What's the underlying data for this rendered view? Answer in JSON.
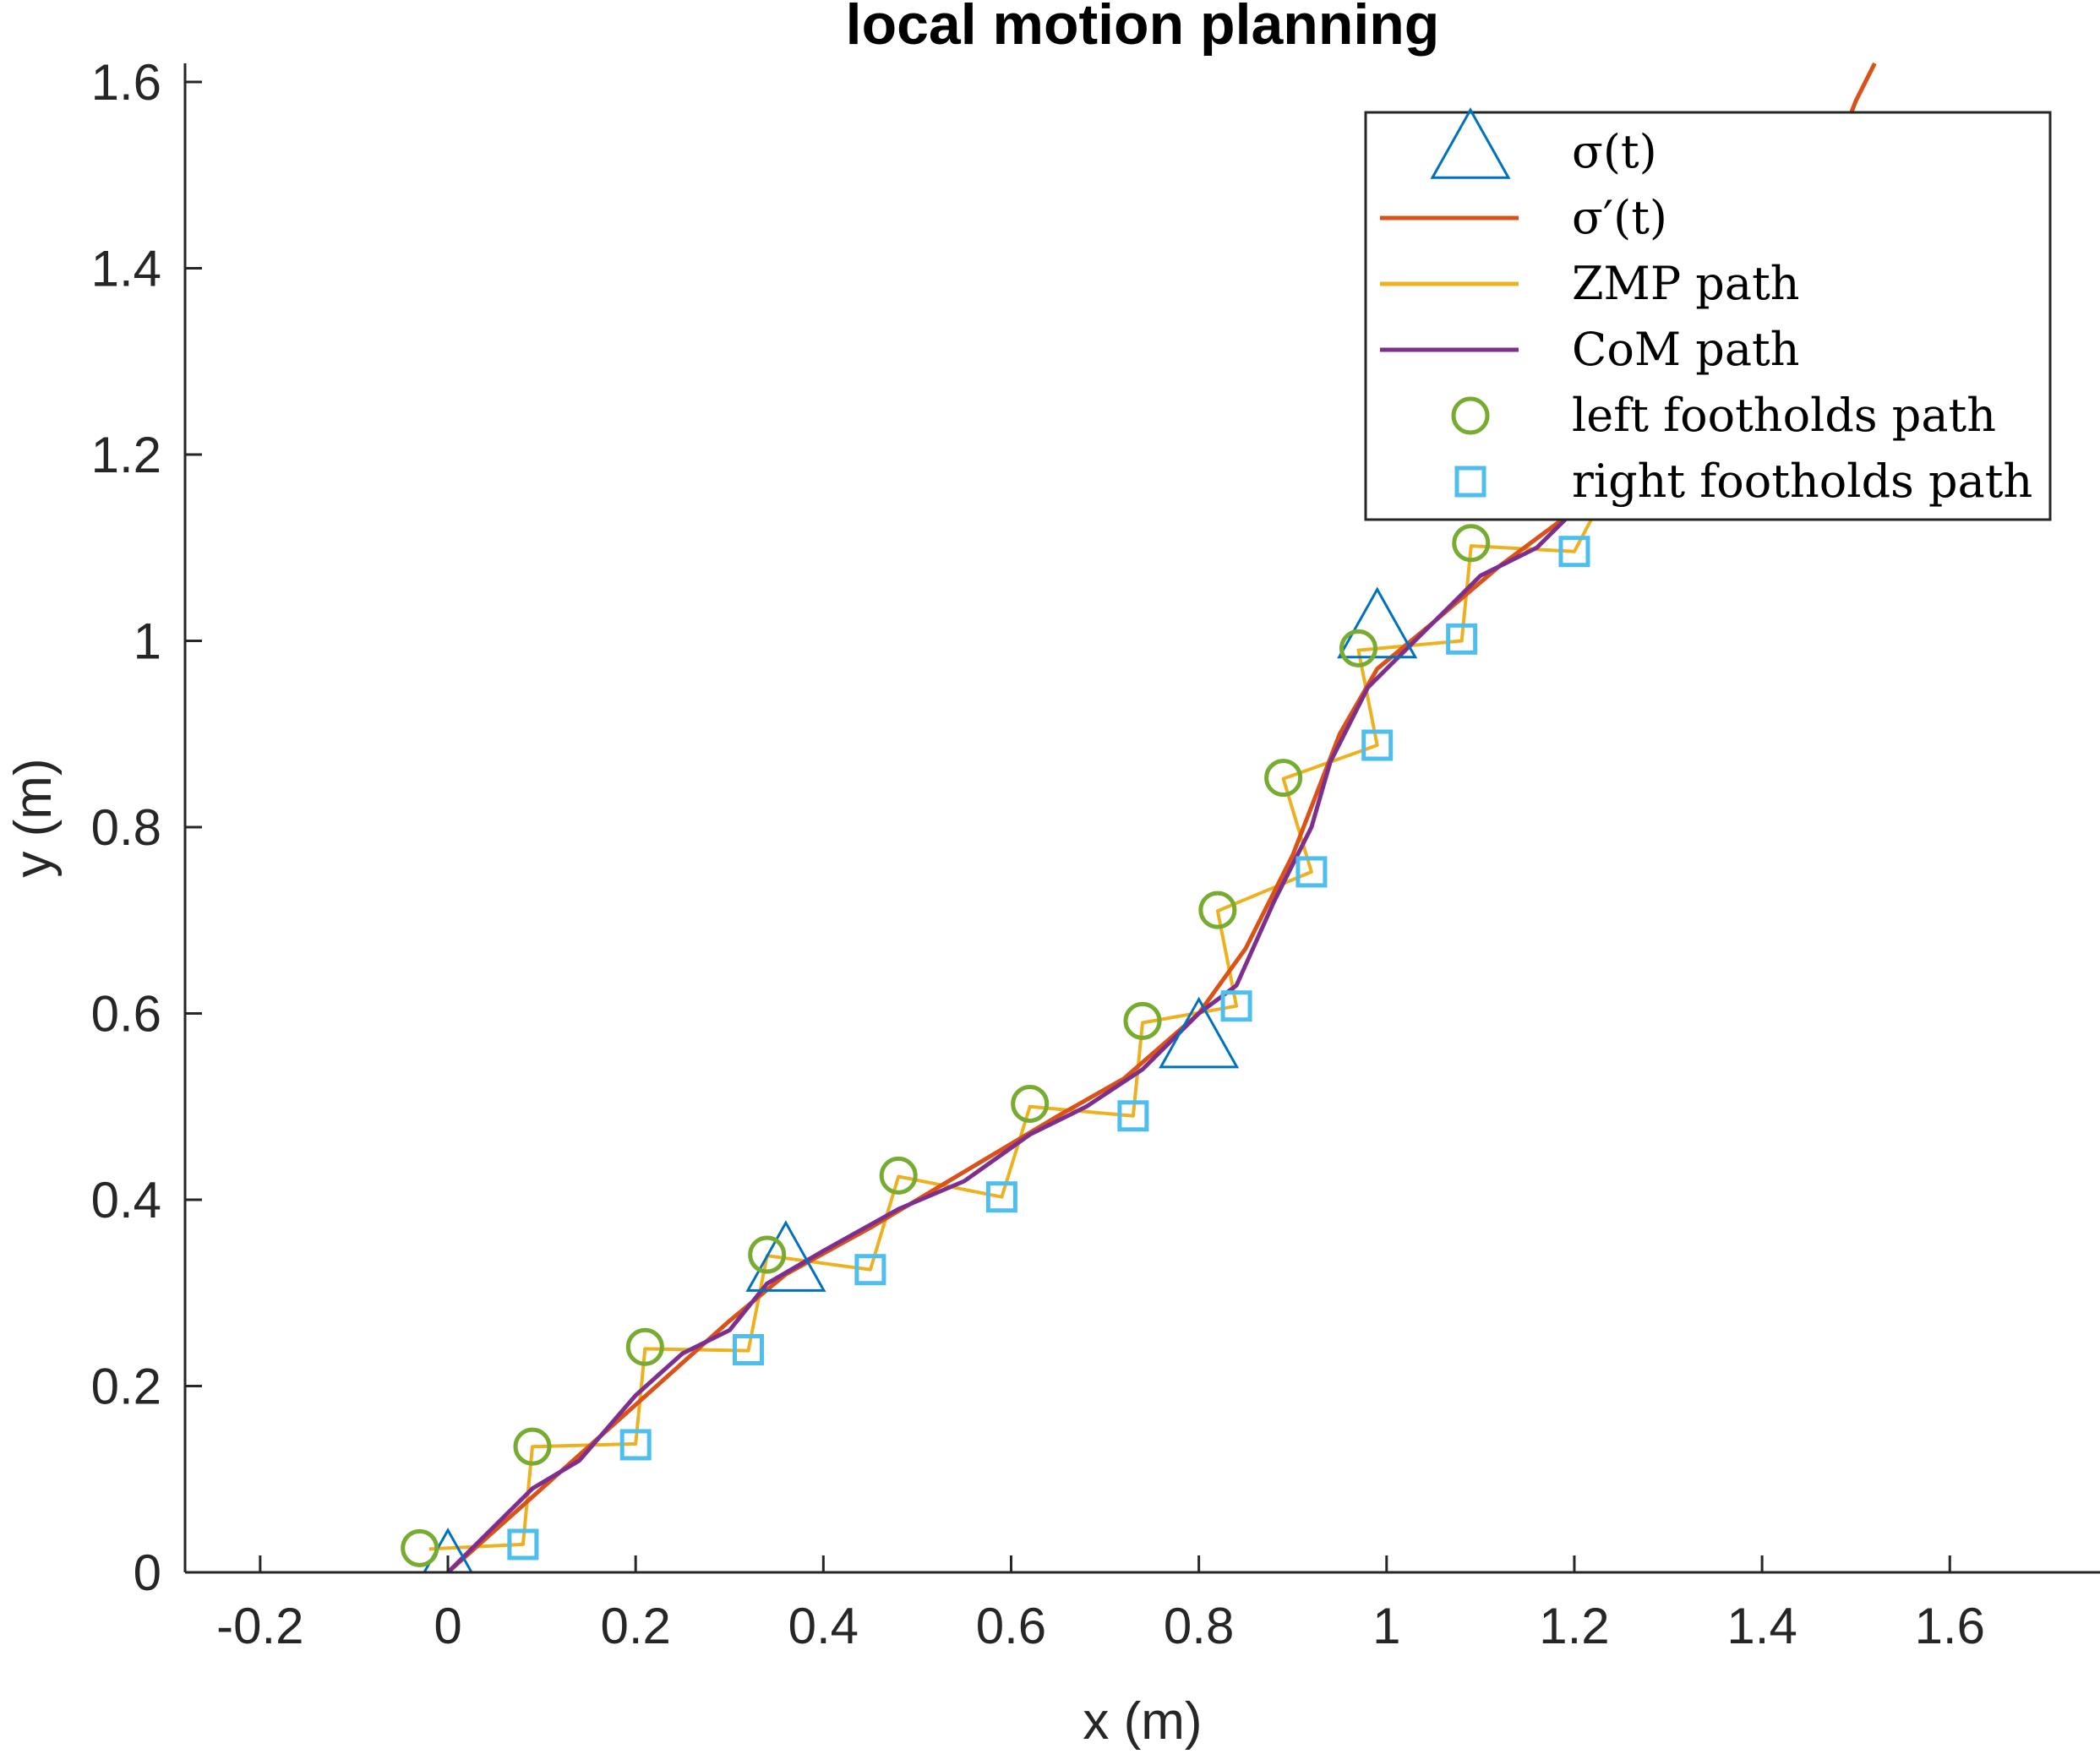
{
  "chart_data": {
    "type": "line",
    "title": "local motion planning",
    "xlabel": "x (m)",
    "ylabel": "y (m)",
    "xlim": [
      -0.28,
      1.76
    ],
    "ylim": [
      0,
      1.62
    ],
    "xticks": [
      -0.2,
      0,
      0.2,
      0.4,
      0.6,
      0.8,
      1,
      1.2,
      1.4,
      1.6
    ],
    "xtick_labels": [
      "-0.2",
      "0",
      "0.2",
      "0.4",
      "0.6",
      "0.8",
      "1",
      "1.2",
      "1.4",
      "1.6"
    ],
    "yticks": [
      0,
      0.2,
      0.4,
      0.6,
      0.8,
      1,
      1.2,
      1.4,
      1.6
    ],
    "ytick_labels": [
      "0",
      "0.2",
      "0.4",
      "0.6",
      "0.8",
      "1",
      "1.2",
      "1.4",
      "1.6"
    ],
    "grid": false,
    "legend_position": "top-right",
    "series": [
      {
        "name": "σ(t)",
        "kind": "markers",
        "marker": "triangle",
        "color": "#0072BD",
        "points": [
          [
            0.0,
            0.0
          ],
          [
            0.36,
            0.33
          ],
          [
            0.8,
            0.57
          ],
          [
            0.99,
            1.01
          ]
        ]
      },
      {
        "name": "σ′(t)",
        "kind": "line",
        "color": "#D95319",
        "points": [
          [
            0.0,
            0.0
          ],
          [
            0.1,
            0.09
          ],
          [
            0.2,
            0.18
          ],
          [
            0.3,
            0.27
          ],
          [
            0.36,
            0.32
          ],
          [
            0.45,
            0.37
          ],
          [
            0.55,
            0.43
          ],
          [
            0.65,
            0.49
          ],
          [
            0.72,
            0.53
          ],
          [
            0.8,
            0.6
          ],
          [
            0.85,
            0.67
          ],
          [
            0.9,
            0.77
          ],
          [
            0.95,
            0.9
          ],
          [
            0.99,
            0.97
          ],
          [
            1.05,
            1.02
          ],
          [
            1.12,
            1.08
          ],
          [
            1.2,
            1.14
          ],
          [
            1.3,
            1.22
          ],
          [
            1.38,
            1.32
          ],
          [
            1.45,
            1.45
          ],
          [
            1.5,
            1.58
          ],
          [
            1.52,
            1.62
          ]
        ]
      },
      {
        "name": "ZMP path",
        "kind": "line",
        "color": "#EDB120",
        "points": [
          [
            -0.02,
            0.025
          ],
          [
            0.08,
            0.03
          ],
          [
            0.09,
            0.135
          ],
          [
            0.2,
            0.138
          ],
          [
            0.21,
            0.24
          ],
          [
            0.32,
            0.238
          ],
          [
            0.34,
            0.34
          ],
          [
            0.45,
            0.325
          ],
          [
            0.48,
            0.425
          ],
          [
            0.59,
            0.403
          ],
          [
            0.62,
            0.5
          ],
          [
            0.73,
            0.49
          ],
          [
            0.74,
            0.59
          ],
          [
            0.84,
            0.608
          ],
          [
            0.82,
            0.71
          ],
          [
            0.92,
            0.752
          ],
          [
            0.89,
            0.852
          ],
          [
            0.99,
            0.888
          ],
          [
            0.97,
            0.99
          ],
          [
            1.08,
            1.0
          ],
          [
            1.09,
            1.102
          ],
          [
            1.2,
            1.096
          ],
          [
            1.26,
            1.21
          ]
        ]
      },
      {
        "name": "CoM path",
        "kind": "line",
        "color": "#7E2F8E",
        "points": [
          [
            0.0,
            0.0
          ],
          [
            0.05,
            0.05
          ],
          [
            0.09,
            0.09
          ],
          [
            0.14,
            0.12
          ],
          [
            0.2,
            0.19
          ],
          [
            0.25,
            0.235
          ],
          [
            0.3,
            0.26
          ],
          [
            0.34,
            0.31
          ],
          [
            0.4,
            0.345
          ],
          [
            0.48,
            0.39
          ],
          [
            0.55,
            0.42
          ],
          [
            0.62,
            0.47
          ],
          [
            0.68,
            0.5
          ],
          [
            0.74,
            0.54
          ],
          [
            0.8,
            0.6
          ],
          [
            0.84,
            0.63
          ],
          [
            0.88,
            0.72
          ],
          [
            0.92,
            0.8
          ],
          [
            0.94,
            0.87
          ],
          [
            0.98,
            0.95
          ],
          [
            1.02,
            0.99
          ],
          [
            1.06,
            1.03
          ],
          [
            1.1,
            1.07
          ],
          [
            1.16,
            1.1
          ],
          [
            1.2,
            1.14
          ]
        ]
      },
      {
        "name": "left footholds path",
        "kind": "markers",
        "marker": "circle",
        "color": "#77AC30",
        "points": [
          [
            -0.03,
            0.026
          ],
          [
            0.09,
            0.135
          ],
          [
            0.21,
            0.242
          ],
          [
            0.34,
            0.341
          ],
          [
            0.48,
            0.426
          ],
          [
            0.62,
            0.503
          ],
          [
            0.74,
            0.592
          ],
          [
            0.82,
            0.711
          ],
          [
            0.89,
            0.853
          ],
          [
            0.97,
            0.992
          ],
          [
            1.09,
            1.105
          ]
        ]
      },
      {
        "name": "right footholds path",
        "kind": "markers",
        "marker": "square",
        "color": "#4DBEEE",
        "points": [
          [
            0.08,
            0.03
          ],
          [
            0.2,
            0.137
          ],
          [
            0.32,
            0.239
          ],
          [
            0.45,
            0.325
          ],
          [
            0.59,
            0.403
          ],
          [
            0.73,
            0.49
          ],
          [
            0.84,
            0.608
          ],
          [
            0.92,
            0.752
          ],
          [
            0.99,
            0.888
          ],
          [
            1.08,
            1.002
          ],
          [
            1.2,
            1.096
          ]
        ]
      }
    ]
  }
}
